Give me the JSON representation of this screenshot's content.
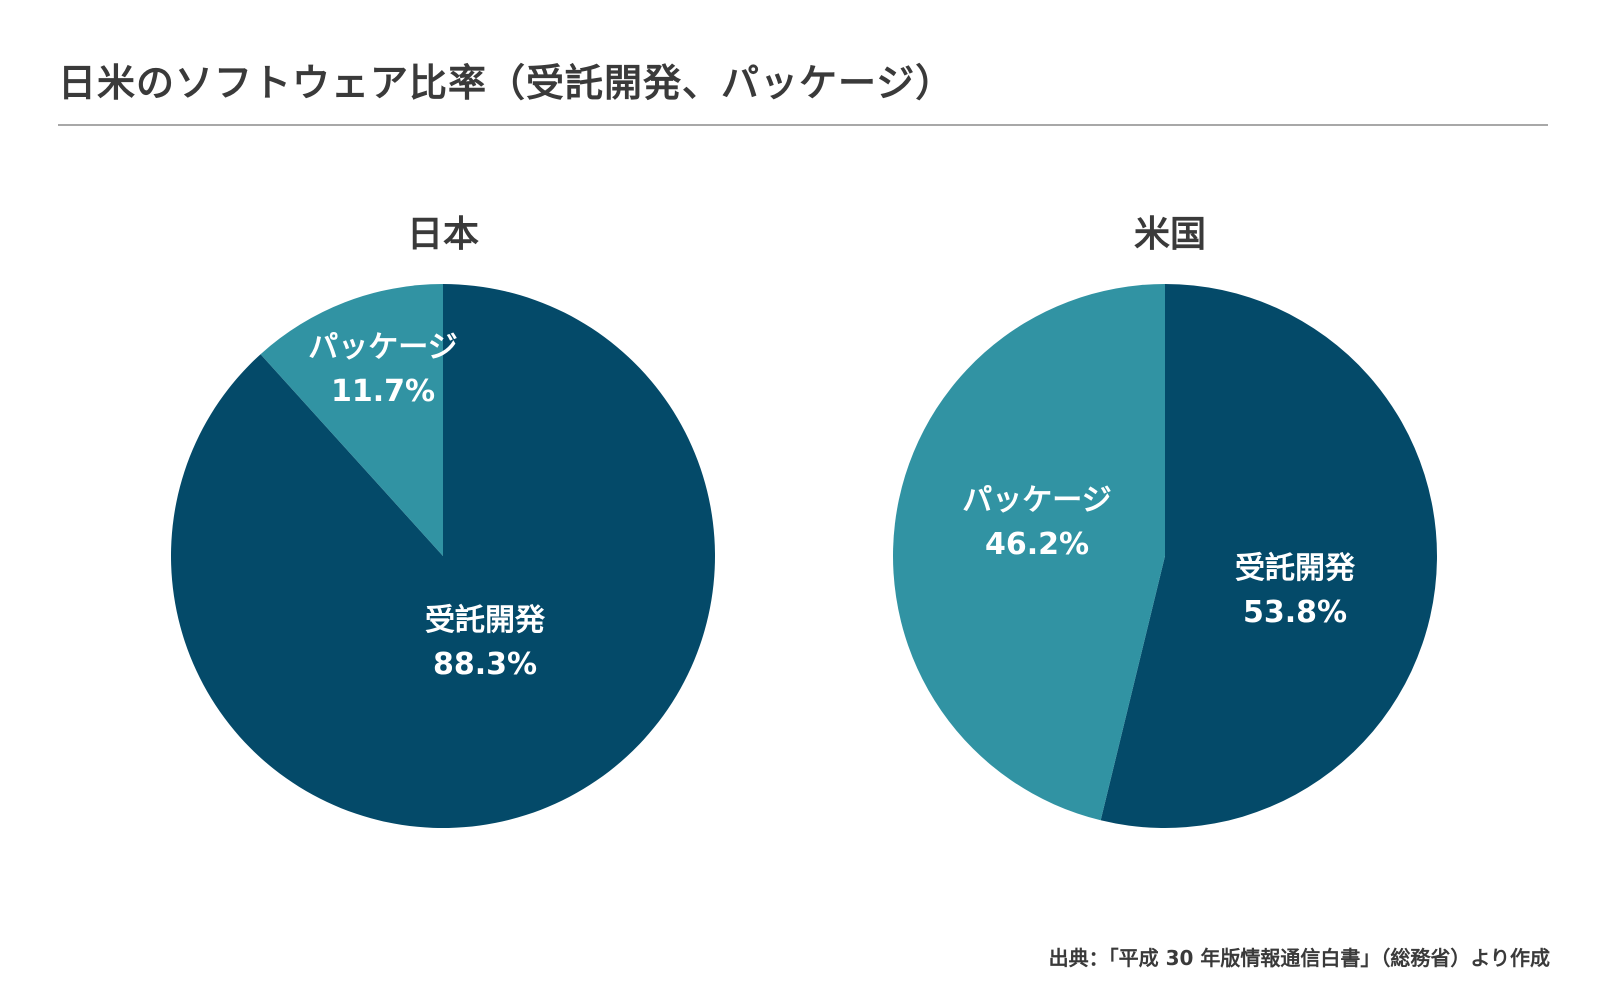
{
  "title": "日米のソフトウェア比率（受託開発、パッケージ）",
  "source": "出典：「平成 30 年版情報通信白書」（総務省）より作成",
  "colors": {
    "custom_development": "#044a69",
    "package": "#3193a3"
  },
  "chart_data": [
    {
      "type": "pie",
      "title": "日本",
      "slices": [
        {
          "label": "受託開発",
          "value": 88.3,
          "value_label": "88.3%",
          "color": "#044a69"
        },
        {
          "label": "パッケージ",
          "value": 11.7,
          "value_label": "11.7%",
          "color": "#3193a3"
        }
      ]
    },
    {
      "type": "pie",
      "title": "米国",
      "slices": [
        {
          "label": "受託開発",
          "value": 53.8,
          "value_label": "53.8%",
          "color": "#044a69"
        },
        {
          "label": "パッケージ",
          "value": 46.2,
          "value_label": "46.2%",
          "color": "#3193a3"
        }
      ]
    }
  ]
}
